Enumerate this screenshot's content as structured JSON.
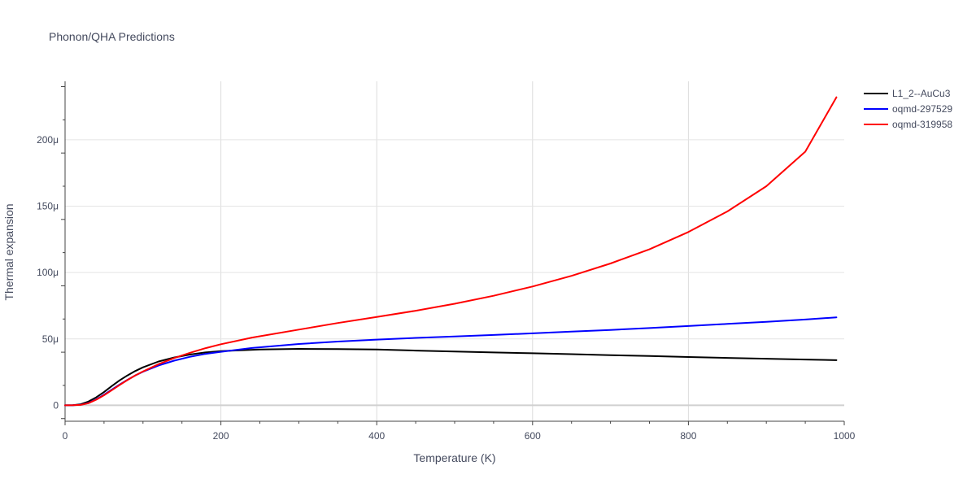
{
  "chart_data": {
    "type": "line",
    "title": "Phonon/QHA Predictions",
    "xlabel": "Temperature (K)",
    "ylabel": "Thermal expansion",
    "xlim": [
      0,
      1000
    ],
    "ylim": [
      -1.2e-05,
      0.000244
    ],
    "x_ticks": [
      {
        "value": 0,
        "label": "0"
      },
      {
        "value": 200,
        "label": "200"
      },
      {
        "value": 400,
        "label": "400"
      },
      {
        "value": 600,
        "label": "600"
      },
      {
        "value": 800,
        "label": "800"
      },
      {
        "value": 1000,
        "label": "1000"
      }
    ],
    "y_ticks": [
      {
        "value": 0,
        "label": "0"
      },
      {
        "value": 5e-05,
        "label": "50μ"
      },
      {
        "value": 0.0001,
        "label": "100μ"
      },
      {
        "value": 0.00015,
        "label": "150μ"
      },
      {
        "value": 0.0002,
        "label": "200μ"
      }
    ],
    "grid": true,
    "legend_position": "top-right",
    "series": [
      {
        "name": "L1_2--AuCu3",
        "color": "#000000",
        "x": [
          0,
          10,
          20,
          30,
          40,
          50,
          60,
          70,
          80,
          90,
          100,
          120,
          140,
          160,
          180,
          200,
          250,
          300,
          350,
          400,
          450,
          500,
          550,
          600,
          650,
          700,
          750,
          800,
          850,
          900,
          950,
          990
        ],
        "y": [
          0,
          1e-07,
          8e-07,
          2.8e-06,
          6e-06,
          1e-05,
          1.45e-05,
          1.88e-05,
          2.25e-05,
          2.58e-05,
          2.86e-05,
          3.3e-05,
          3.6e-05,
          3.82e-05,
          3.98e-05,
          4.08e-05,
          4.2e-05,
          4.25e-05,
          4.23e-05,
          4.2e-05,
          4.12e-05,
          4.05e-05,
          3.98e-05,
          3.92e-05,
          3.85e-05,
          3.78e-05,
          3.71e-05,
          3.64e-05,
          3.57e-05,
          3.51e-05,
          3.45e-05,
          3.4e-05
        ]
      },
      {
        "name": "oqmd-297529",
        "color": "#0000ff",
        "x": [
          0,
          10,
          20,
          30,
          40,
          50,
          60,
          70,
          80,
          90,
          100,
          120,
          140,
          160,
          180,
          200,
          240,
          300,
          350,
          400,
          450,
          500,
          550,
          600,
          650,
          700,
          750,
          800,
          850,
          900,
          950,
          990
        ],
        "y": [
          0,
          5e-08,
          4e-07,
          1.8e-06,
          4.5e-06,
          8e-06,
          1.18e-05,
          1.56e-05,
          1.92e-05,
          2.25e-05,
          2.53e-05,
          3e-05,
          3.36e-05,
          3.65e-05,
          3.87e-05,
          4.03e-05,
          4.32e-05,
          4.62e-05,
          4.8e-05,
          4.95e-05,
          5.08e-05,
          5.19e-05,
          5.3e-05,
          5.42e-05,
          5.55e-05,
          5.68e-05,
          5.82e-05,
          5.97e-05,
          6.13e-05,
          6.29e-05,
          6.46e-05,
          6.63e-05
        ]
      },
      {
        "name": "oqmd-319958",
        "color": "#ff0000",
        "x": [
          0,
          10,
          20,
          30,
          40,
          50,
          60,
          70,
          80,
          90,
          100,
          120,
          140,
          160,
          180,
          200,
          240,
          300,
          350,
          400,
          450,
          500,
          550,
          600,
          650,
          700,
          750,
          800,
          850,
          900,
          950,
          990
        ],
        "y": [
          0,
          5e-08,
          3e-07,
          1.6e-06,
          4.2e-06,
          7.6e-06,
          1.14e-05,
          1.53e-05,
          1.9e-05,
          2.24e-05,
          2.55e-05,
          3.1e-05,
          3.56e-05,
          3.95e-05,
          4.3e-05,
          4.6e-05,
          5.1e-05,
          5.7e-05,
          6.2e-05,
          6.65e-05,
          7.12e-05,
          7.65e-05,
          8.25e-05,
          8.95e-05,
          9.75e-05,
          0.0001068,
          0.0001175,
          0.0001305,
          0.000146,
          0.000165,
          0.000191,
          0.000232
        ]
      }
    ]
  }
}
